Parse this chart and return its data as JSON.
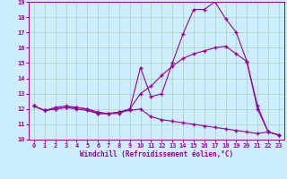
{
  "xlabel": "Windchill (Refroidissement éolien,°C)",
  "bg_color": "#cceeff",
  "line_color": "#990099",
  "grid_color": "#aaccbb",
  "xlim": [
    -0.5,
    23.5
  ],
  "ylim": [
    10,
    19
  ],
  "xticks": [
    0,
    1,
    2,
    3,
    4,
    5,
    6,
    7,
    8,
    9,
    10,
    11,
    12,
    13,
    14,
    15,
    16,
    17,
    18,
    19,
    20,
    21,
    22,
    23
  ],
  "yticks": [
    10,
    11,
    12,
    13,
    14,
    15,
    16,
    17,
    18,
    19
  ],
  "line1_x": [
    0,
    1,
    2,
    3,
    4,
    5,
    6,
    7,
    8,
    9,
    10,
    11,
    12,
    13,
    14,
    15,
    16,
    17,
    18,
    19,
    20,
    21,
    22,
    23
  ],
  "line1_y": [
    12.2,
    11.9,
    12.0,
    12.1,
    12.1,
    12.0,
    11.7,
    11.7,
    11.8,
    12.0,
    14.7,
    12.8,
    13.0,
    15.0,
    16.9,
    18.5,
    18.5,
    19.0,
    17.9,
    17.0,
    15.1,
    12.0,
    10.5,
    10.3
  ],
  "line2_x": [
    0,
    1,
    2,
    3,
    4,
    5,
    6,
    7,
    8,
    9,
    10,
    11,
    12,
    13,
    14,
    15,
    16,
    17,
    18,
    19,
    20,
    21,
    22,
    23
  ],
  "line2_y": [
    12.2,
    11.9,
    12.1,
    12.2,
    12.1,
    12.0,
    11.8,
    11.7,
    11.7,
    12.0,
    13.0,
    13.5,
    14.2,
    14.8,
    15.3,
    15.6,
    15.8,
    16.0,
    16.1,
    15.6,
    15.1,
    12.2,
    10.5,
    10.3
  ],
  "line3_x": [
    0,
    1,
    2,
    3,
    4,
    5,
    6,
    7,
    8,
    9,
    10,
    11,
    12,
    13,
    14,
    15,
    16,
    17,
    18,
    19,
    20,
    21,
    22,
    23
  ],
  "line3_y": [
    12.2,
    11.9,
    12.0,
    12.1,
    12.0,
    11.9,
    11.7,
    11.7,
    11.8,
    11.9,
    12.0,
    11.5,
    11.3,
    11.2,
    11.1,
    11.0,
    10.9,
    10.8,
    10.7,
    10.6,
    10.5,
    10.4,
    10.5,
    10.3
  ],
  "marker": "+",
  "markersize": 3.5,
  "linewidth": 0.8,
  "xlabel_fontsize": 5.5,
  "tick_fontsize": 5.0
}
